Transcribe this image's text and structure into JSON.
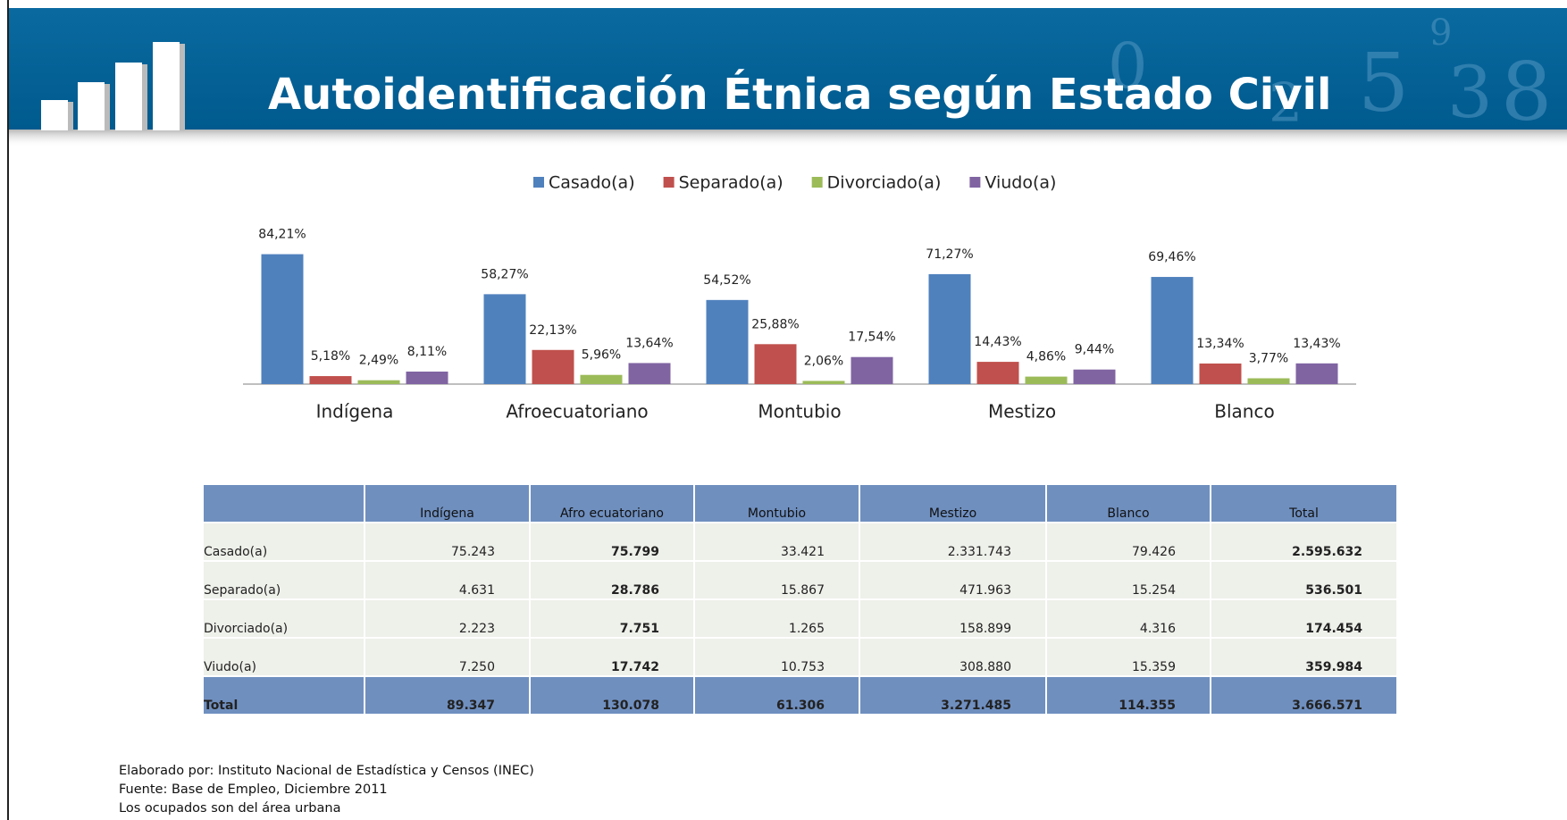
{
  "header": {
    "title": "Autoidentificación Étnica según Estado Civil"
  },
  "chart_data": {
    "type": "bar",
    "categories": [
      "Indígena",
      "Afroecuatoriano",
      "Montubio",
      "Mestizo",
      "Blanco"
    ],
    "series": [
      {
        "name": "Casado(a)",
        "color": "#4f81bd",
        "values": [
          84.21,
          58.27,
          54.52,
          71.27,
          69.46
        ],
        "value_labels": [
          "84,21%",
          "58,27%",
          "54,52%",
          "71,27%",
          "69,46%"
        ]
      },
      {
        "name": "Separado(a)",
        "color": "#c0504d",
        "values": [
          5.18,
          22.13,
          25.88,
          14.43,
          13.34
        ],
        "value_labels": [
          "5,18%",
          "22,13%",
          "25,88%",
          "14,43%",
          "13,34%"
        ]
      },
      {
        "name": "Divorciado(a)",
        "color": "#9bbb59",
        "values": [
          2.49,
          5.96,
          2.06,
          4.86,
          3.77
        ],
        "value_labels": [
          "2,49%",
          "5,96%",
          "2,06%",
          "4,86%",
          "3,77%"
        ]
      },
      {
        "name": "Viudo(a)",
        "color": "#8064a2",
        "values": [
          8.11,
          13.64,
          17.54,
          9.44,
          13.43
        ],
        "value_labels": [
          "8,11%",
          "13,64%",
          "17,54%",
          "9,44%",
          "13,43%"
        ]
      }
    ],
    "legend": "top"
  },
  "table": {
    "columns": [
      "Indígena",
      "Afro ecuatoriano",
      "Montubio",
      "Mestizo",
      "Blanco",
      "Total"
    ],
    "rows": [
      {
        "label": "Casado(a)",
        "values": [
          "75.243",
          "75.799",
          "33.421",
          "2.331.743",
          "79.426",
          "2.595.632"
        ]
      },
      {
        "label": "Separado(a)",
        "values": [
          "4.631",
          "28.786",
          "15.867",
          "471.963",
          "15.254",
          "536.501"
        ]
      },
      {
        "label": "Divorciado(a)",
        "values": [
          "2.223",
          "7.751",
          "1.265",
          "158.899",
          "4.316",
          "174.454"
        ]
      },
      {
        "label": "Viudo(a)",
        "values": [
          "7.250",
          "17.742",
          "10.753",
          "308.880",
          "15.359",
          "359.984"
        ]
      },
      {
        "label": "Total",
        "values": [
          "89.347",
          "130.078",
          "61.306",
          "3.271.485",
          "114.355",
          "3.666.571"
        ]
      }
    ]
  },
  "footer": {
    "lines": [
      "Elaborado por: Instituto Nacional de Estadística y Censos (INEC)",
      "Fuente: Base de Empleo, Diciembre 2011",
      "Los ocupados son del área urbana"
    ]
  }
}
